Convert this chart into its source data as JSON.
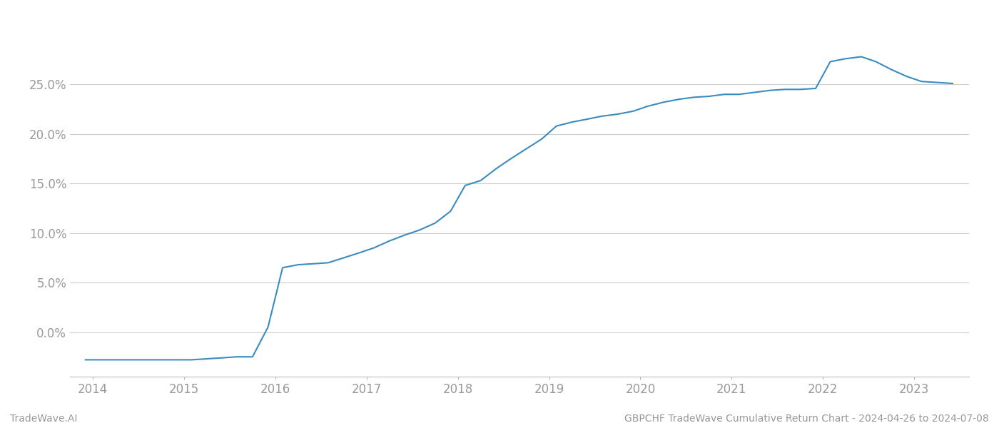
{
  "x_values": [
    2013.92,
    2014.0,
    2014.25,
    2014.5,
    2014.75,
    2015.0,
    2015.08,
    2015.25,
    2015.42,
    2015.58,
    2015.75,
    2015.92,
    2016.08,
    2016.25,
    2016.42,
    2016.58,
    2016.75,
    2016.92,
    2017.08,
    2017.25,
    2017.42,
    2017.58,
    2017.75,
    2017.92,
    2018.08,
    2018.25,
    2018.42,
    2018.58,
    2018.75,
    2018.92,
    2019.08,
    2019.25,
    2019.42,
    2019.58,
    2019.75,
    2019.92,
    2020.08,
    2020.25,
    2020.42,
    2020.58,
    2020.75,
    2020.92,
    2021.08,
    2021.25,
    2021.42,
    2021.58,
    2021.75,
    2021.92,
    2022.08,
    2022.25,
    2022.42,
    2022.58,
    2022.75,
    2022.92,
    2023.08,
    2023.25,
    2023.42
  ],
  "y_values": [
    -2.8,
    -2.8,
    -2.8,
    -2.8,
    -2.8,
    -2.8,
    -2.8,
    -2.7,
    -2.6,
    -2.5,
    -2.5,
    0.5,
    6.5,
    6.8,
    6.9,
    7.0,
    7.5,
    8.0,
    8.5,
    9.2,
    9.8,
    10.3,
    11.0,
    12.2,
    14.8,
    15.3,
    16.5,
    17.5,
    18.5,
    19.5,
    20.8,
    21.2,
    21.5,
    21.8,
    22.0,
    22.3,
    22.8,
    23.2,
    23.5,
    23.7,
    23.8,
    24.0,
    24.0,
    24.2,
    24.4,
    24.5,
    24.5,
    24.6,
    27.3,
    27.6,
    27.8,
    27.3,
    26.5,
    25.8,
    25.3,
    25.2,
    25.1
  ],
  "line_color": "#3a8bbf",
  "line_width": 1.5,
  "footer_left": "TradeWave.AI",
  "footer_right": "GBPCHF TradeWave Cumulative Return Chart - 2024-04-26 to 2024-07-08",
  "xlim": [
    2013.75,
    2023.6
  ],
  "ylim": [
    -4.5,
    30.5
  ],
  "yticks": [
    0.0,
    5.0,
    10.0,
    15.0,
    20.0,
    25.0
  ],
  "xticks": [
    2014,
    2015,
    2016,
    2017,
    2018,
    2019,
    2020,
    2021,
    2022,
    2023
  ],
  "grid_color": "#cccccc",
  "background_color": "#ffffff",
  "tick_color": "#999999",
  "footer_fontsize": 10,
  "tick_fontsize": 12
}
